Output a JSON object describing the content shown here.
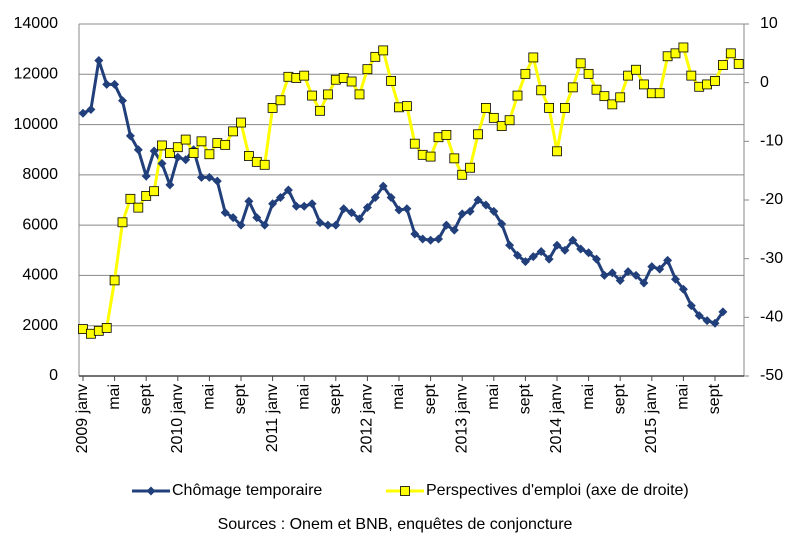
{
  "chart_data": {
    "type": "line",
    "source": "Sources : Onem et BNB, enquêtes de conjoncture",
    "categories": [
      "2009 janv",
      null,
      null,
      null,
      "mai",
      null,
      null,
      null,
      "sept",
      null,
      null,
      null,
      "2010 janv",
      null,
      null,
      null,
      "mai",
      null,
      null,
      null,
      "sept",
      null,
      null,
      null,
      "2011 janv",
      null,
      null,
      null,
      "mai",
      null,
      null,
      null,
      "sept",
      null,
      null,
      null,
      "2012 janv",
      null,
      null,
      null,
      "mai",
      null,
      null,
      null,
      "sept",
      null,
      null,
      null,
      "2013 janv",
      null,
      null,
      null,
      "mai",
      null,
      null,
      null,
      "sept",
      null,
      null,
      null,
      "2014 janv",
      null,
      null,
      null,
      "mai",
      null,
      null,
      null,
      "sept",
      null,
      null,
      null,
      "2015 janv",
      null,
      null,
      null,
      "mai",
      null,
      null,
      null,
      "sept",
      null,
      null,
      null
    ],
    "series": [
      {
        "name": "Chômage temporaire",
        "color": "#213f7a",
        "marker": "diamond",
        "values": [
          10450,
          10600,
          12550,
          11600,
          11600,
          10950,
          9550,
          9000,
          7950,
          8950,
          8450,
          7600,
          8700,
          8600,
          9000,
          7900,
          7900,
          7750,
          6500,
          6300,
          6000,
          6950,
          6300,
          6000,
          6850,
          7100,
          7400,
          6750,
          6750,
          6850,
          6100,
          6000,
          6000,
          6650,
          6500,
          6250,
          6700,
          7100,
          7550,
          7100,
          6600,
          6650,
          5650,
          5450,
          5400,
          5450,
          6000,
          5800,
          6450,
          6550,
          7000,
          6800,
          6550,
          6050,
          5200,
          4800,
          4550,
          4750,
          4950,
          4650,
          5200,
          5000,
          5400,
          5050,
          4900,
          4650,
          4000,
          4100,
          3800,
          4150,
          4000,
          3700,
          4350,
          4250,
          4600,
          3850,
          3450,
          2800,
          2400,
          2200,
          2100,
          2550,
          null,
          null
        ]
      },
      {
        "name": "Perspectives d'emploi (axe de droite)",
        "color": "#ffff00",
        "marker": "square",
        "axis": "y2",
        "values": [
          -42,
          -42.8,
          -42.3,
          -41.8,
          -33.7,
          -23.8,
          -19.8,
          -21.3,
          -19.3,
          -18.5,
          -10.7,
          -12,
          -11,
          -9.7,
          -12,
          -10,
          -12.2,
          -10.3,
          -10.6,
          -8.3,
          -6.8,
          -12.5,
          -13.5,
          -14,
          -4.3,
          -3,
          1,
          0.8,
          1.2,
          -2.2,
          -4.8,
          -2,
          0.5,
          0.8,
          0.2,
          -2,
          2.3,
          4.4,
          5.5,
          0.3,
          -4.2,
          -4,
          -10.4,
          -12.3,
          -12.6,
          -9.3,
          -8.9,
          -12.9,
          -15.7,
          -14.5,
          -8.8,
          -4.3,
          -6,
          -7.4,
          -6.4,
          -2.2,
          1.5,
          4.3,
          -1.3,
          -4.3,
          -11.7,
          -4.3,
          -0.8,
          3.3,
          1.5,
          -1.2,
          -2.3,
          -3.7,
          -2.5,
          1.2,
          2.2,
          -0.3,
          -1.8,
          -1.8,
          4.5,
          5,
          6,
          1.2,
          -0.7,
          -0.3,
          0.3,
          3,
          5,
          3.2
        ]
      }
    ],
    "ylim": [
      0,
      14000
    ],
    "yticks": [
      0,
      2000,
      4000,
      6000,
      8000,
      10000,
      12000,
      14000
    ],
    "y2lim": [
      -50,
      10
    ],
    "y2ticks": [
      -50,
      -40,
      -30,
      -20,
      -10,
      0,
      10
    ],
    "grid": true,
    "legend": "bottom"
  }
}
